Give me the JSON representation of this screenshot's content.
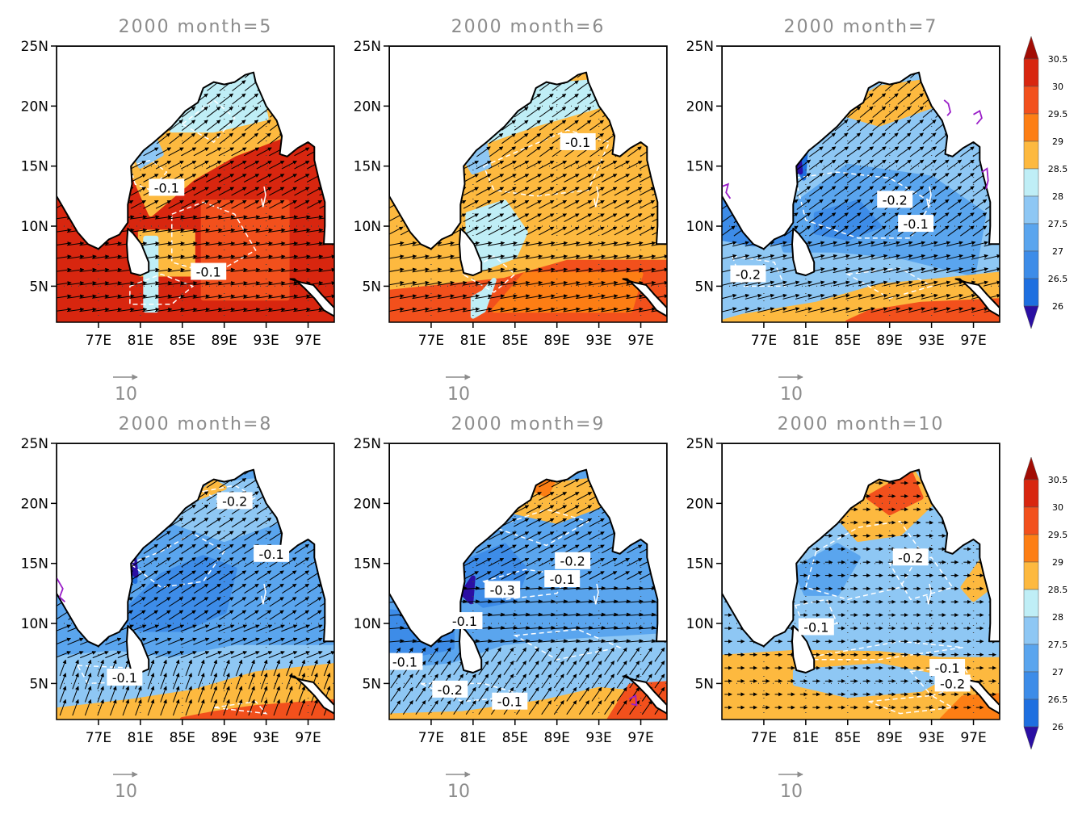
{
  "panels": [
    {
      "title": "2000  month=5",
      "labels": [
        "-0.1",
        "-0.1"
      ]
    },
    {
      "title": "2000  month=6",
      "labels": [
        "-0.1"
      ]
    },
    {
      "title": "2000  month=7",
      "labels": [
        "-0.2",
        "-0.1",
        "-0.2"
      ]
    },
    {
      "title": "2000  month=8",
      "labels": [
        "-0.2",
        "-0.1",
        "-0.1"
      ]
    },
    {
      "title": "2000  month=9",
      "labels": [
        "-0.2",
        "-0.1",
        "-0.3",
        "-0.1",
        "-0.1",
        "-0.2",
        "-0.1"
      ]
    },
    {
      "title": "2000  month=10",
      "labels": [
        "-0.2",
        "-0.1",
        "-0.1",
        "-0.2"
      ]
    }
  ],
  "y_ticks": [
    "5N",
    "10N",
    "15N",
    "20N",
    "25N"
  ],
  "x_ticks": [
    "77E",
    "81E",
    "85E",
    "89E",
    "93E",
    "97E"
  ],
  "vector_reference": {
    "label": "10"
  },
  "colorbar": {
    "levels": [
      "26",
      "26.5",
      "27",
      "27.5",
      "28",
      "28.5",
      "29",
      "29.5",
      "30",
      "30.5"
    ],
    "colors": [
      "#2b0fa3",
      "#1e6fe0",
      "#3d8ce8",
      "#5aa5ee",
      "#8ec7f4",
      "#bfeef6",
      "#fdb93f",
      "#fd7e14",
      "#f2501c",
      "#d8260f",
      "#a20d05"
    ]
  },
  "colors": {
    "land": "#ffffff",
    "coast": "#000000",
    "title": "#8c8c8c",
    "contour": "#ffffff",
    "arrow": "#000000",
    "purple_contour": "#9a1ec8"
  }
}
